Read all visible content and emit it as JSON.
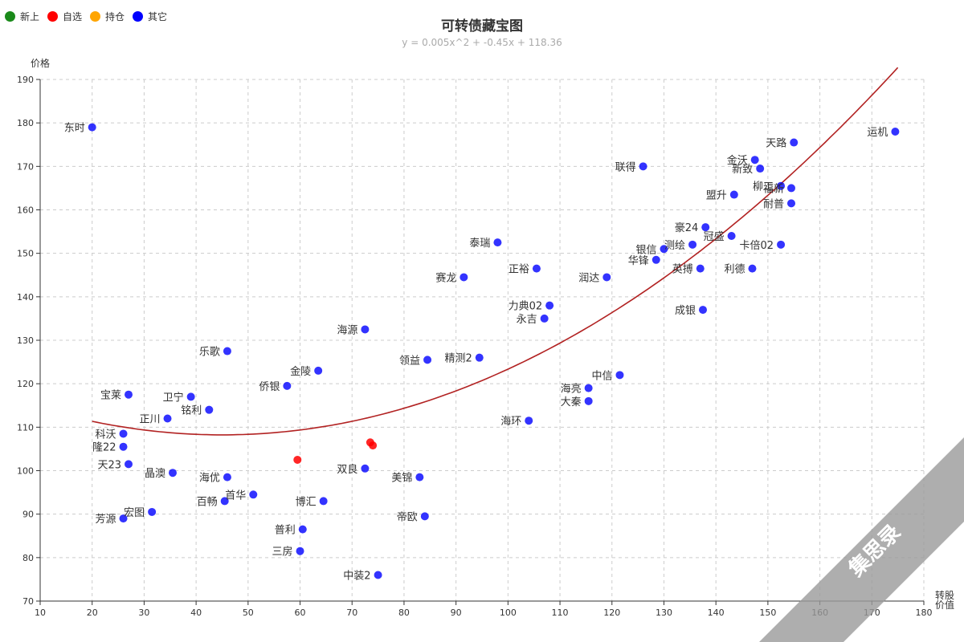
{
  "legend": [
    {
      "label": "新上",
      "color": "#1a8a1a"
    },
    {
      "label": "自选",
      "color": "#ff0000"
    },
    {
      "label": "持仓",
      "color": "#ffa500"
    },
    {
      "label": "其它",
      "color": "#0000ff"
    }
  ],
  "watermark": {
    "text": "集思录"
  },
  "chart_data": {
    "type": "scatter",
    "title": "可转债藏宝图",
    "subtitle": "y = 0.005x^2 + -0.45x + 118.36",
    "xlabel": "转股价值",
    "ylabel": "价格",
    "xlim": [
      10,
      180
    ],
    "ylim": [
      70,
      190
    ],
    "x_ticks": [
      10,
      20,
      30,
      40,
      50,
      60,
      70,
      80,
      90,
      100,
      110,
      120,
      130,
      140,
      150,
      160,
      170,
      180
    ],
    "y_ticks": [
      70,
      80,
      90,
      100,
      110,
      120,
      130,
      140,
      150,
      160,
      170,
      180,
      190
    ],
    "grid": true,
    "legend_position": "top-left",
    "trendline": {
      "a": 0.005,
      "b": -0.45,
      "c": 118.36,
      "x_range": [
        20,
        175
      ],
      "color": "#b22222"
    },
    "series": [
      {
        "name": "自选",
        "color": "#ff0000",
        "points": [
          [
            73.5,
            106.5
          ],
          [
            59.5,
            102.5
          ],
          [
            74,
            105.8
          ]
        ]
      },
      {
        "name": "其它",
        "color": "#0000ff",
        "labeled_points": [
          {
            "label": "东时",
            "x": 20,
            "y": 179
          },
          {
            "label": "运机",
            "x": 174.5,
            "y": 178
          },
          {
            "label": "天路",
            "x": 155,
            "y": 175.5
          },
          {
            "label": "联得",
            "x": 126,
            "y": 170
          },
          {
            "label": "金沃",
            "x": 147.5,
            "y": 171.5
          },
          {
            "label": "新致",
            "x": 148.5,
            "y": 169.5
          },
          {
            "label": "柳工",
            "x": 152.5,
            "y": 165.5
          },
          {
            "label": "福新",
            "x": 154.5,
            "y": 165
          },
          {
            "label": "盟升",
            "x": 143.5,
            "y": 163.5
          },
          {
            "label": "耐普",
            "x": 154.5,
            "y": 161.5
          },
          {
            "label": "豪24",
            "x": 138,
            "y": 156
          },
          {
            "label": "冠盛",
            "x": 143,
            "y": 154
          },
          {
            "label": "卡倍02",
            "x": 152.5,
            "y": 152
          },
          {
            "label": "泰瑞",
            "x": 98,
            "y": 152.5
          },
          {
            "label": "银信",
            "x": 130,
            "y": 151
          },
          {
            "label": "测绘",
            "x": 135.5,
            "y": 152
          },
          {
            "label": "华锋",
            "x": 128.5,
            "y": 148.5
          },
          {
            "label": "正裕",
            "x": 105.5,
            "y": 146.5
          },
          {
            "label": "英搏",
            "x": 137,
            "y": 146.5
          },
          {
            "label": "利德",
            "x": 147,
            "y": 146.5
          },
          {
            "label": "赛龙",
            "x": 91.5,
            "y": 144.5
          },
          {
            "label": "润达",
            "x": 119,
            "y": 144.5
          },
          {
            "label": "成银",
            "x": 137.5,
            "y": 137
          },
          {
            "label": "力典02",
            "x": 108,
            "y": 138
          },
          {
            "label": "永吉",
            "x": 107,
            "y": 135
          },
          {
            "label": "海源",
            "x": 72.5,
            "y": 132.5
          },
          {
            "label": "乐歌",
            "x": 46,
            "y": 127.5
          },
          {
            "label": "领益",
            "x": 84.5,
            "y": 125.5
          },
          {
            "label": "精测2",
            "x": 94.5,
            "y": 126
          },
          {
            "label": "金陵",
            "x": 63.5,
            "y": 123
          },
          {
            "label": "中信",
            "x": 121.5,
            "y": 122
          },
          {
            "label": "侨银",
            "x": 57.5,
            "y": 119.5
          },
          {
            "label": "海亮",
            "x": 115.5,
            "y": 119
          },
          {
            "label": "宝莱",
            "x": 27,
            "y": 117.5
          },
          {
            "label": "卫宁",
            "x": 39,
            "y": 117
          },
          {
            "label": "大秦",
            "x": 115.5,
            "y": 116
          },
          {
            "label": "铭利",
            "x": 42.5,
            "y": 114
          },
          {
            "label": "海环",
            "x": 104,
            "y": 111.5
          },
          {
            "label": "正川",
            "x": 34.5,
            "y": 112
          },
          {
            "label": "科沃",
            "x": 26,
            "y": 108.5
          },
          {
            "label": "隆22",
            "x": 26,
            "y": 105.5
          },
          {
            "label": "天23",
            "x": 27,
            "y": 101.5
          },
          {
            "label": "晶澳",
            "x": 35.5,
            "y": 99.5
          },
          {
            "label": "海优",
            "x": 46,
            "y": 98.5
          },
          {
            "label": "美锦",
            "x": 83,
            "y": 98.5
          },
          {
            "label": "双良",
            "x": 72.5,
            "y": 100.5
          },
          {
            "label": "首华",
            "x": 51,
            "y": 94.5
          },
          {
            "label": "百畅",
            "x": 45.5,
            "y": 93
          },
          {
            "label": "博汇",
            "x": 64.5,
            "y": 93
          },
          {
            "label": "宏图",
            "x": 31.5,
            "y": 90.5
          },
          {
            "label": "芳源",
            "x": 26,
            "y": 89
          },
          {
            "label": "帝欧",
            "x": 84,
            "y": 89.5
          },
          {
            "label": "普利",
            "x": 60.5,
            "y": 86.5
          },
          {
            "label": "三房",
            "x": 60,
            "y": 81.5
          },
          {
            "label": "中装2",
            "x": 75,
            "y": 76
          }
        ]
      }
    ]
  }
}
